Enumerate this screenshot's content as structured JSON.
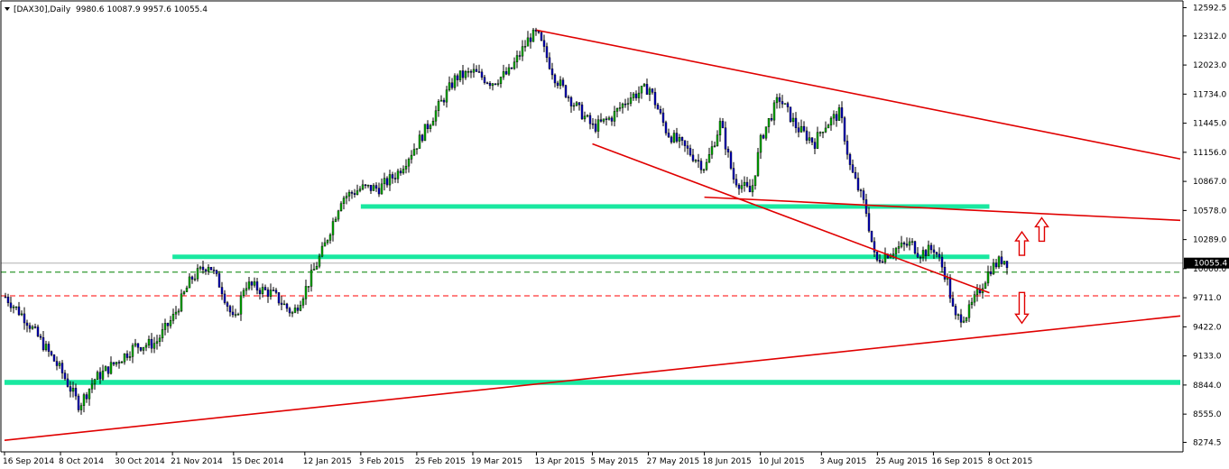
{
  "header": {
    "symbol": "[DAX30],Daily",
    "ohlc": "9980.6 10087.9 9957.6 10055.4"
  },
  "chart_data": {
    "type": "candlestick",
    "timeframe": "Daily",
    "grid": false,
    "ylim": [
      8180,
      12660
    ],
    "price_ticks": [
      "12592.5",
      "12312.0",
      "12023.0",
      "11734.0",
      "11445.0",
      "11156.0",
      "10867.0",
      "10578.0",
      "10289.0",
      "10000.0",
      "9711.0",
      "9422.0",
      "9133.0",
      "8844.0",
      "8555.0",
      "8274.5"
    ],
    "date_labels": [
      "16 Sep 2014",
      "8 Oct 2014",
      "30 Oct 2014",
      "21 Nov 2014",
      "15 Dec 2014",
      "12 Jan 2015",
      "3 Feb 2015",
      "25 Feb 2015",
      "19 Mar 2015",
      "13 Apr 2015",
      "5 May 2015",
      "27 May 2015",
      "18 Jun 2015",
      "10 Jul 2015",
      "3 Aug 2015",
      "25 Aug 2015",
      "16 Sep 2015",
      "8 Oct 2015"
    ],
    "current_price": "10055.4",
    "trendlines": [
      {
        "name": "upper-channel",
        "from": [
          "13 Apr 2015",
          12370
        ],
        "to": [
          "end",
          11090
        ]
      },
      {
        "name": "lower-channel",
        "from": [
          "5 May 2015",
          11240
        ],
        "to": [
          "8 Oct 2015",
          9760
        ]
      },
      {
        "name": "long-term-support",
        "from": [
          "start",
          8295
        ],
        "to": [
          "end",
          9530
        ]
      },
      {
        "name": "neckline",
        "from": [
          "18 Jun 2015",
          10710
        ],
        "to": [
          "end",
          10480
        ]
      }
    ],
    "zones": [
      {
        "name": "resistance-10620",
        "from": [
          "3 Feb 2015",
          10600
        ],
        "to": [
          "8 Oct 2015",
          10640
        ]
      },
      {
        "name": "support-10120",
        "from": [
          "21 Nov 2014",
          10100
        ],
        "to": [
          "8 Oct 2015",
          10140
        ]
      },
      {
        "name": "support-8870",
        "from": [
          "start",
          8845
        ],
        "to": [
          "end",
          8895
        ]
      }
    ],
    "levels": [
      {
        "name": "green-dashed",
        "value": 9965,
        "color": "#008000"
      },
      {
        "name": "red-dashed",
        "value": 9730,
        "color": "#ff0000"
      },
      {
        "name": "gray-solid",
        "value": 10055,
        "color": "#b0b0b0"
      }
    ],
    "arrows": [
      {
        "direction": "up",
        "at": "8 Oct 2015",
        "value": 10240
      },
      {
        "direction": "up",
        "at": "8 Oct 2015",
        "value": 10380
      },
      {
        "direction": "down",
        "at": "8 Oct 2015",
        "value": 9620
      }
    ],
    "path": [
      [
        "16 Sep 2014",
        9720
      ],
      [
        "24 Sep 2014",
        9500
      ],
      [
        "1 Oct 2014",
        9240
      ],
      [
        "8 Oct 2014",
        8980
      ],
      [
        "15 Oct 2014",
        8640
      ],
      [
        "21 Oct 2014",
        8900
      ],
      [
        "30 Oct 2014",
        9080
      ],
      [
        "6 Nov 2014",
        9230
      ],
      [
        "14 Nov 2014",
        9260
      ],
      [
        "21 Nov 2014",
        9520
      ],
      [
        "28 Nov 2014",
        9900
      ],
      [
        "5 Dec 2014",
        10050
      ],
      [
        "10 Dec 2014",
        9800
      ],
      [
        "15 Dec 2014",
        9450
      ],
      [
        "19 Dec 2014",
        9850
      ],
      [
        "30 Dec 2014",
        9750
      ],
      [
        "7 Jan 2015",
        9550
      ],
      [
        "12 Jan 2015",
        9800
      ],
      [
        "19 Jan 2015",
        10200
      ],
      [
        "26 Jan 2015",
        10700
      ],
      [
        "3 Feb 2015",
        10800
      ],
      [
        "10 Feb 2015",
        10800
      ],
      [
        "17 Feb 2015",
        10950
      ],
      [
        "25 Feb 2015",
        11250
      ],
      [
        "5 Mar 2015",
        11600
      ],
      [
        "12 Mar 2015",
        11900
      ],
      [
        "19 Mar 2015",
        11950
      ],
      [
        "26 Mar 2015",
        11850
      ],
      [
        "2 Apr 2015",
        11950
      ],
      [
        "10 Apr 2015",
        12300
      ],
      [
        "13 Apr 2015",
        12330
      ],
      [
        "20 Apr 2015",
        11900
      ],
      [
        "27 Apr 2015",
        11650
      ],
      [
        "5 May 2015",
        11400
      ],
      [
        "12 May 2015",
        11500
      ],
      [
        "19 May 2015",
        11700
      ],
      [
        "27 May 2015",
        11800
      ],
      [
        "3 Jun 2015",
        11350
      ],
      [
        "10 Jun 2015",
        11200
      ],
      [
        "18 Jun 2015",
        11000
      ],
      [
        "24 Jun 2015",
        11450
      ],
      [
        "29 Jun 2015",
        10900
      ],
      [
        "6 Jul 2015",
        10750
      ],
      [
        "10 Jul 2015",
        11300
      ],
      [
        "17 Jul 2015",
        11700
      ],
      [
        "24 Jul 2015",
        11400
      ],
      [
        "31 Jul 2015",
        11250
      ],
      [
        "3 Aug 2015",
        11400
      ],
      [
        "10 Aug 2015",
        11550
      ],
      [
        "14 Aug 2015",
        11000
      ],
      [
        "20 Aug 2015",
        10600
      ],
      [
        "24 Aug 2015",
        10050
      ],
      [
        "25 Aug 2015",
        10100
      ],
      [
        "1 Sep 2015",
        10200
      ],
      [
        "7 Sep 2015",
        10250
      ],
      [
        "10 Sep 2015",
        10150
      ],
      [
        "16 Sep 2015",
        10200
      ],
      [
        "21 Sep 2015",
        9900
      ],
      [
        "24 Sep 2015",
        9500
      ],
      [
        "29 Sep 2015",
        9550
      ],
      [
        "2 Oct 2015",
        9700
      ],
      [
        "8 Oct 2015",
        10000
      ],
      [
        "13 Oct 2015",
        10100
      ],
      [
        "15 Oct 2015",
        10055
      ]
    ]
  }
}
